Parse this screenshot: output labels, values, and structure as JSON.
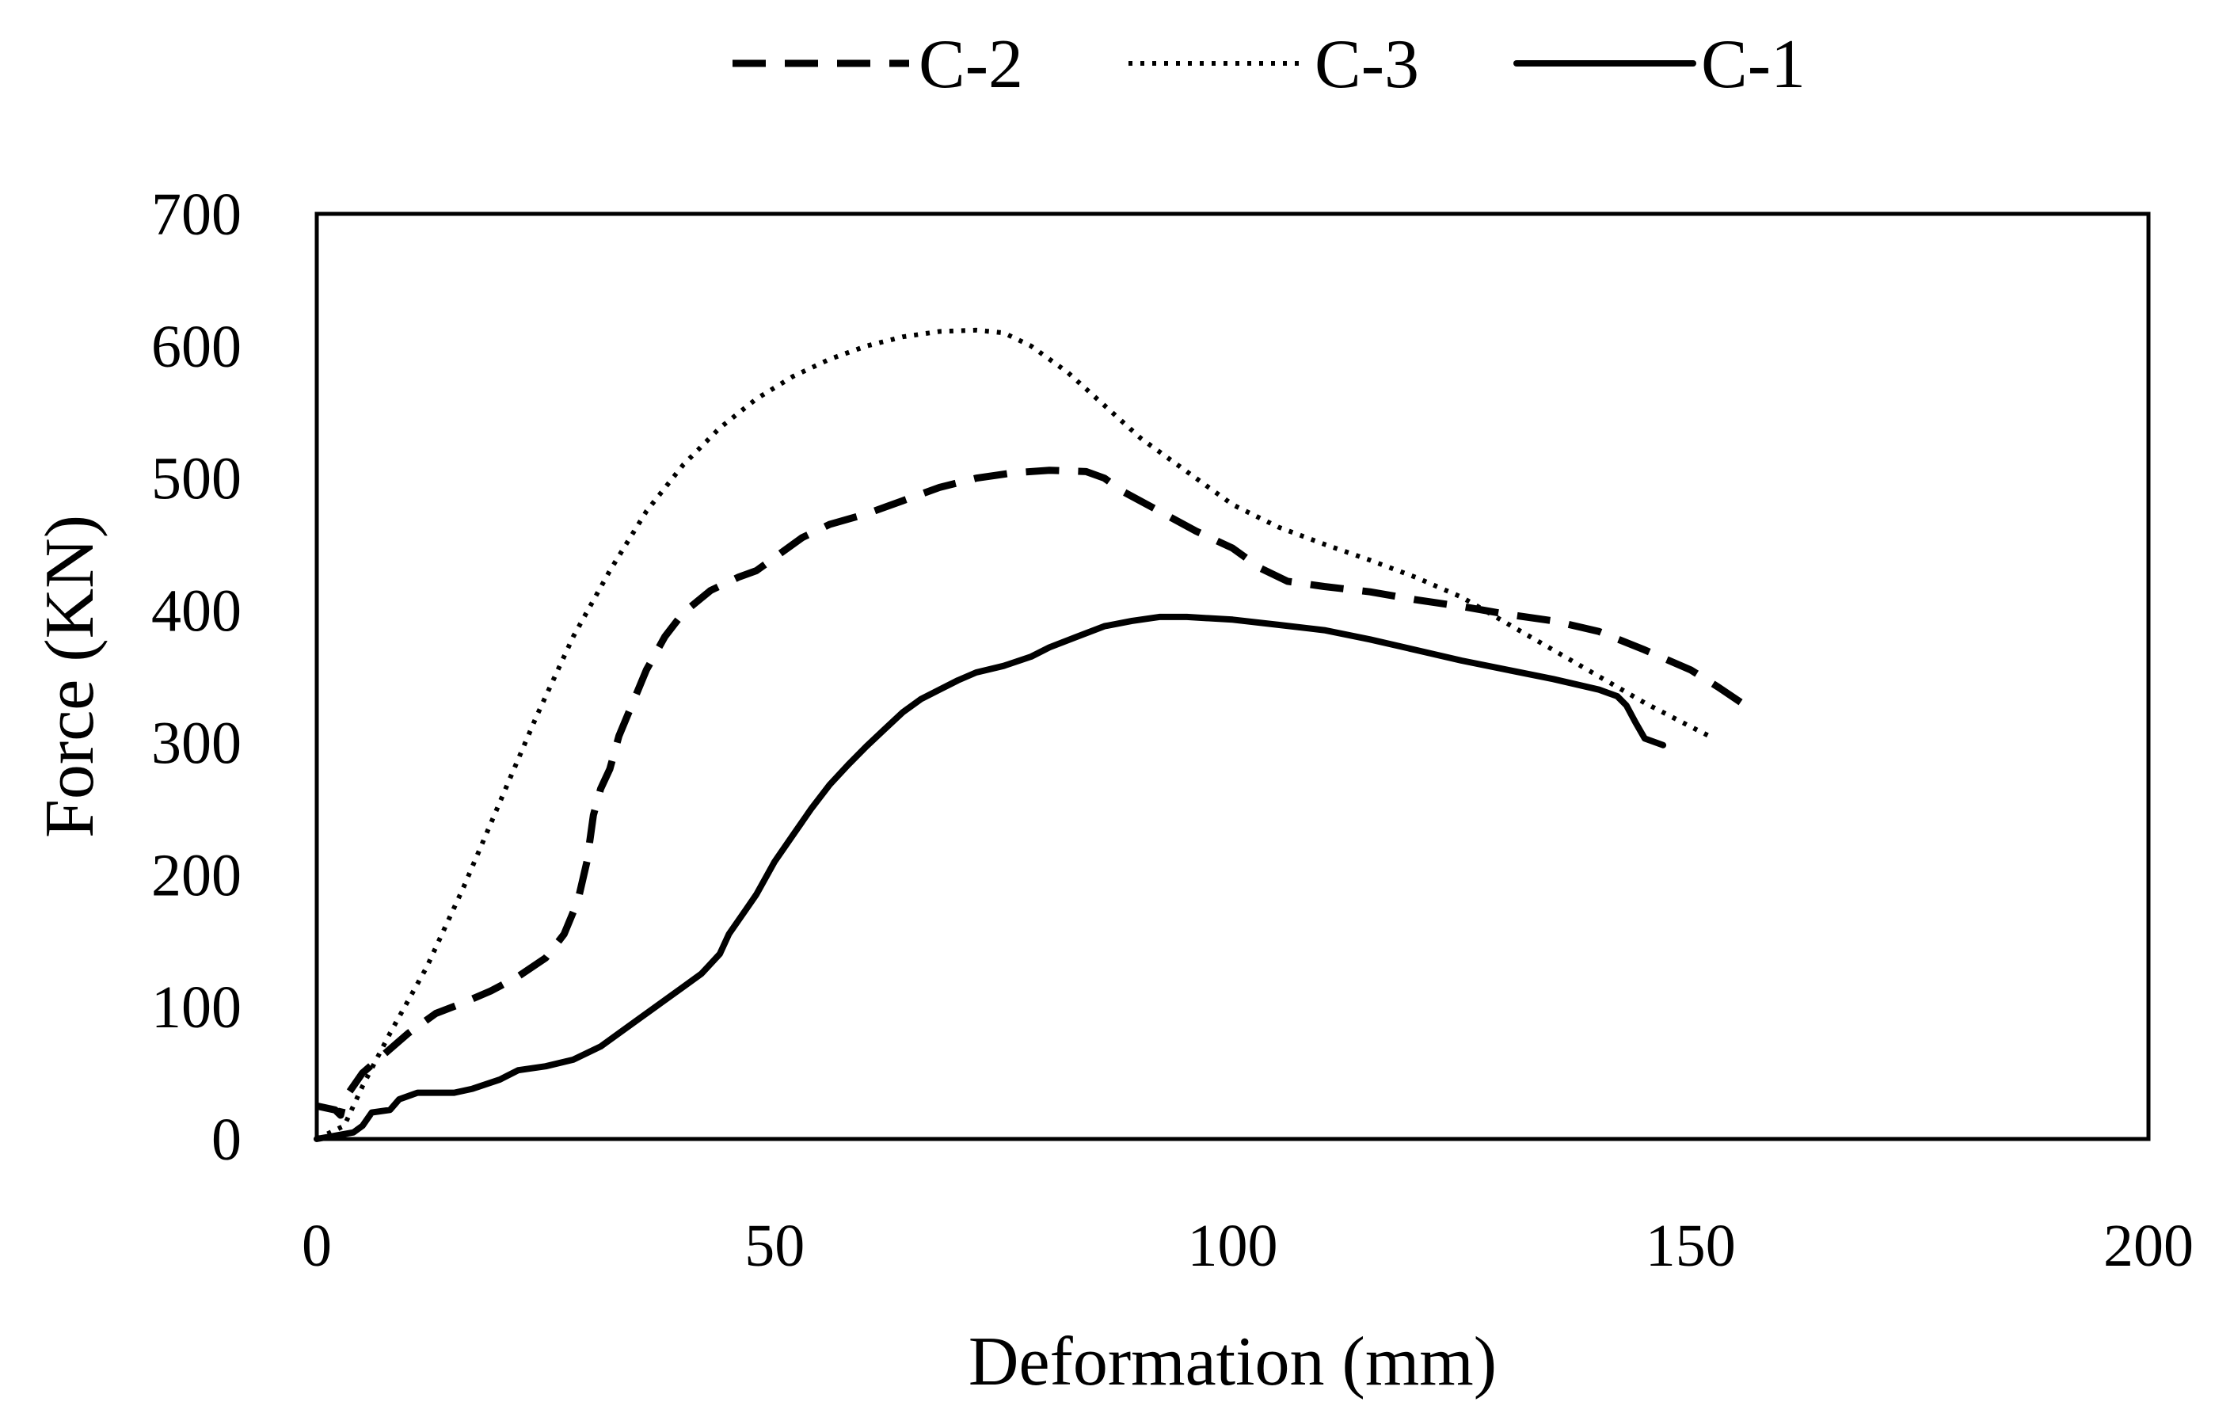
{
  "chart_data": {
    "type": "line",
    "title": "",
    "xlabel": "Deformation (mm)",
    "ylabel": "Force  (KN)",
    "xlim": [
      0,
      200
    ],
    "ylim": [
      0,
      700
    ],
    "xticks": [
      0,
      50,
      100,
      150,
      200
    ],
    "xtick_labels": [
      "0",
      "50",
      "100",
      "150",
      "200"
    ],
    "yticks": [
      0,
      100,
      200,
      300,
      400,
      500,
      600,
      700
    ],
    "ytick_labels": [
      "0",
      "100",
      "200",
      "300",
      "400",
      "500",
      "600",
      "700"
    ],
    "grid": false,
    "legend_position": "top",
    "colors": {
      "line": "#000000",
      "frame": "#000000",
      "background": "#ffffff"
    },
    "series": [
      {
        "name": "C-2",
        "style": "dashed",
        "points": [
          [
            0,
            25
          ],
          [
            2,
            22
          ],
          [
            2.6,
            18
          ],
          [
            3,
            30
          ],
          [
            5,
            50
          ],
          [
            7,
            62
          ],
          [
            10,
            80
          ],
          [
            13,
            95
          ],
          [
            16,
            103
          ],
          [
            19,
            112
          ],
          [
            22,
            123
          ],
          [
            25,
            137
          ],
          [
            27,
            155
          ],
          [
            28.5,
            180
          ],
          [
            29.5,
            210
          ],
          [
            30.2,
            245
          ],
          [
            31,
            265
          ],
          [
            32,
            280
          ],
          [
            33,
            305
          ],
          [
            34.5,
            330
          ],
          [
            36,
            355
          ],
          [
            38,
            380
          ],
          [
            40,
            398
          ],
          [
            43,
            415
          ],
          [
            46,
            425
          ],
          [
            48,
            430
          ],
          [
            50,
            440
          ],
          [
            53,
            455
          ],
          [
            56,
            465
          ],
          [
            60,
            473
          ],
          [
            64,
            483
          ],
          [
            68,
            493
          ],
          [
            72,
            500
          ],
          [
            76,
            504
          ],
          [
            80,
            506
          ],
          [
            84,
            505
          ],
          [
            86,
            500
          ],
          [
            88,
            490
          ],
          [
            92,
            475
          ],
          [
            96,
            460
          ],
          [
            100,
            447
          ],
          [
            103,
            432
          ],
          [
            106,
            422
          ],
          [
            110,
            418
          ],
          [
            115,
            414
          ],
          [
            120,
            408
          ],
          [
            125,
            403
          ],
          [
            130,
            397
          ],
          [
            135,
            392
          ],
          [
            140,
            384
          ],
          [
            145,
            370
          ],
          [
            150,
            355
          ],
          [
            153,
            342
          ],
          [
            156,
            328
          ]
        ]
      },
      {
        "name": "C-3",
        "style": "dotted",
        "points": [
          [
            0,
            0
          ],
          [
            3,
            10
          ],
          [
            5,
            40
          ],
          [
            8,
            80
          ],
          [
            12,
            130
          ],
          [
            16,
            190
          ],
          [
            20,
            255
          ],
          [
            24,
            320
          ],
          [
            28,
            380
          ],
          [
            32,
            430
          ],
          [
            36,
            475
          ],
          [
            40,
            510
          ],
          [
            44,
            538
          ],
          [
            48,
            560
          ],
          [
            52,
            577
          ],
          [
            56,
            590
          ],
          [
            60,
            600
          ],
          [
            64,
            607
          ],
          [
            68,
            611
          ],
          [
            72,
            612
          ],
          [
            75,
            610
          ],
          [
            78,
            600
          ],
          [
            82,
            580
          ],
          [
            86,
            555
          ],
          [
            90,
            530
          ],
          [
            95,
            505
          ],
          [
            100,
            480
          ],
          [
            105,
            463
          ],
          [
            110,
            450
          ],
          [
            115,
            438
          ],
          [
            120,
            425
          ],
          [
            125,
            410
          ],
          [
            130,
            390
          ],
          [
            135,
            370
          ],
          [
            140,
            350
          ],
          [
            145,
            330
          ],
          [
            150,
            312
          ],
          [
            152,
            305
          ]
        ]
      },
      {
        "name": "C-1",
        "style": "solid",
        "points": [
          [
            0,
            0
          ],
          [
            4,
            5
          ],
          [
            5,
            10
          ],
          [
            6,
            20
          ],
          [
            8,
            22
          ],
          [
            9,
            30
          ],
          [
            11,
            35
          ],
          [
            15,
            35
          ],
          [
            17,
            38
          ],
          [
            20,
            45
          ],
          [
            22,
            52
          ],
          [
            25,
            55
          ],
          [
            28,
            60
          ],
          [
            31,
            70
          ],
          [
            33,
            80
          ],
          [
            35,
            90
          ],
          [
            37,
            100
          ],
          [
            40,
            115
          ],
          [
            42,
            125
          ],
          [
            44,
            140
          ],
          [
            45,
            155
          ],
          [
            47,
            175
          ],
          [
            48,
            185
          ],
          [
            50,
            210
          ],
          [
            52,
            230
          ],
          [
            54,
            250
          ],
          [
            56,
            268
          ],
          [
            58,
            283
          ],
          [
            60,
            297
          ],
          [
            62,
            310
          ],
          [
            64,
            323
          ],
          [
            66,
            333
          ],
          [
            68,
            340
          ],
          [
            70,
            347
          ],
          [
            72,
            353
          ],
          [
            75,
            358
          ],
          [
            78,
            365
          ],
          [
            80,
            372
          ],
          [
            83,
            380
          ],
          [
            86,
            388
          ],
          [
            89,
            392
          ],
          [
            92,
            395
          ],
          [
            95,
            395
          ],
          [
            100,
            393
          ],
          [
            105,
            389
          ],
          [
            110,
            385
          ],
          [
            115,
            378
          ],
          [
            120,
            370
          ],
          [
            125,
            362
          ],
          [
            130,
            355
          ],
          [
            135,
            348
          ],
          [
            140,
            340
          ],
          [
            142,
            335
          ],
          [
            143,
            328
          ],
          [
            144,
            315
          ],
          [
            145,
            303
          ],
          [
            147,
            298
          ]
        ]
      }
    ]
  }
}
